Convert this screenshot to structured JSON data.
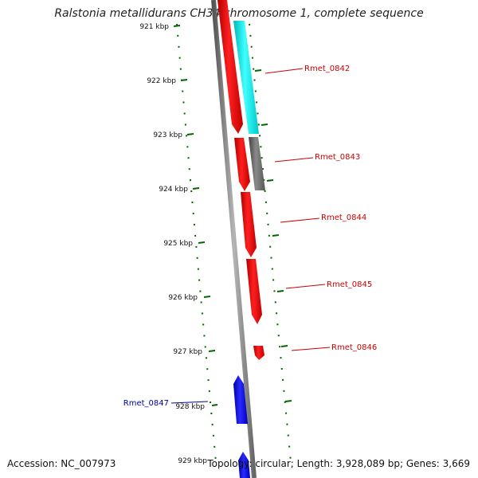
{
  "map": {
    "title": "Ralstonia metallidurans CH34 chromosome 1, complete sequence",
    "accession": "Accession: NC_007973",
    "summary": "Topology: circular; Length: 3,928,089 bp; Genes: 3,669",
    "tick_labels": [
      "921 kbp",
      "922 kbp",
      "923 kbp",
      "924 kbp",
      "925 kbp",
      "926 kbp",
      "927 kbp",
      "928 kbp",
      "929 kbp"
    ],
    "genes": [
      {
        "name": "Rmet_0842",
        "color": "#cc0000"
      },
      {
        "name": "Rmet_0843",
        "color": "#cc0000"
      },
      {
        "name": "Rmet_0844",
        "color": "#cc0000"
      },
      {
        "name": "Rmet_0845",
        "color": "#cc0000"
      },
      {
        "name": "Rmet_0846",
        "color": "#cc0000"
      },
      {
        "name": "Rmet_0847",
        "color": "#000099"
      }
    ],
    "colors": {
      "forward_gene": "#ff0000",
      "reverse_gene": "#0000ff",
      "rna_feature": "#00e5e5",
      "other_feature": "#666666",
      "backbone": "#888888",
      "ticks": "#006600"
    }
  }
}
